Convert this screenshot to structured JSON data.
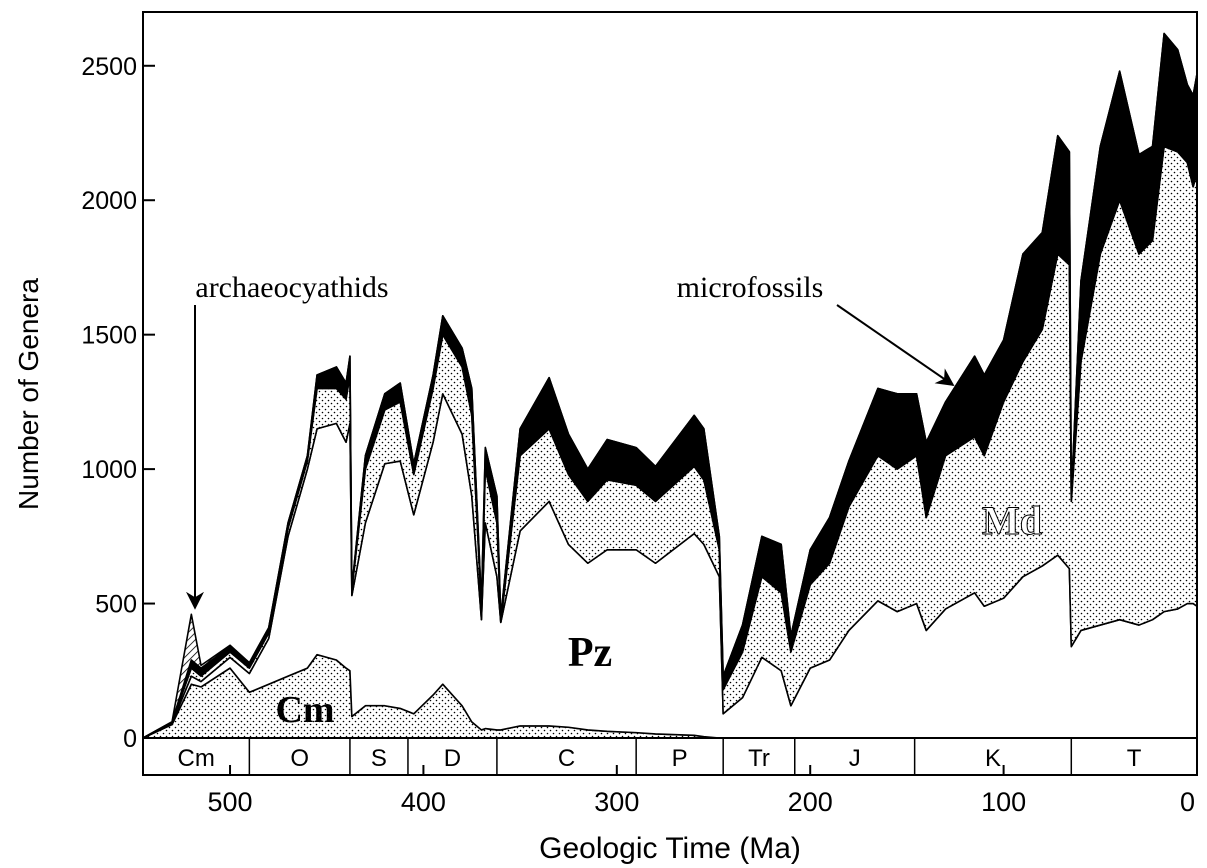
{
  "chart_data": {
    "type": "stacked_area",
    "xlabel": "Geologic Time (Ma)",
    "ylabel": "Number of Genera",
    "xlim": [
      545,
      0
    ],
    "ylim": [
      0,
      2700
    ],
    "xticks": [
      500,
      400,
      300,
      200,
      100,
      0
    ],
    "yticks": [
      0,
      500,
      1000,
      1500,
      2000,
      2500
    ],
    "x": [
      545,
      530,
      520,
      515,
      500,
      490,
      480,
      470,
      460,
      455,
      445,
      440,
      438,
      437,
      430,
      420,
      412,
      405,
      395,
      390,
      380,
      375,
      370,
      368,
      362,
      360,
      350,
      335,
      325,
      315,
      305,
      290,
      280,
      260,
      255,
      247,
      245,
      235,
      225,
      215,
      210,
      200,
      190,
      180,
      165,
      155,
      145,
      140,
      130,
      115,
      110,
      100,
      90,
      80,
      72,
      66,
      65,
      60,
      50,
      40,
      30,
      23,
      17,
      10,
      5,
      2,
      0
    ],
    "series": [
      {
        "name": "Cm",
        "color": "#000000",
        "pattern": "stipple",
        "values": [
          0,
          50,
          200,
          190,
          260,
          170,
          200,
          230,
          260,
          310,
          290,
          260,
          250,
          80,
          120,
          120,
          110,
          90,
          160,
          200,
          120,
          60,
          30,
          35,
          30,
          30,
          45,
          45,
          40,
          30,
          25,
          20,
          15,
          10,
          5,
          0,
          0,
          0,
          0,
          0,
          0,
          0,
          0,
          0,
          0,
          0,
          0,
          0,
          0,
          0,
          0,
          0,
          0,
          0,
          0,
          0,
          0,
          0,
          0,
          0,
          0,
          0,
          0,
          0,
          0,
          0,
          0
        ]
      },
      {
        "name": "Pz",
        "color": "#ffffff",
        "pattern": "solid",
        "values": [
          0,
          5,
          30,
          20,
          40,
          70,
          170,
          520,
          740,
          840,
          880,
          840,
          920,
          450,
          680,
          900,
          920,
          740,
          940,
          1080,
          1010,
          840,
          410,
          765,
          570,
          400,
          725,
          835,
          680,
          620,
          675,
          680,
          635,
          750,
          715,
          600,
          90,
          150,
          300,
          250,
          120,
          260,
          290,
          400,
          510,
          470,
          500,
          400,
          480,
          540,
          490,
          520,
          600,
          640,
          680,
          630,
          340,
          400,
          420,
          440,
          420,
          440,
          470,
          480,
          500,
          500,
          490
        ]
      },
      {
        "name": "Md",
        "color": "#000000",
        "pattern": "stipple",
        "values": [
          0,
          3,
          30,
          20,
          20,
          20,
          20,
          30,
          30,
          150,
          130,
          160,
          180,
          20,
          200,
          200,
          220,
          150,
          200,
          220,
          250,
          300,
          40,
          200,
          200,
          0,
          280,
          270,
          260,
          230,
          260,
          240,
          230,
          250,
          240,
          100,
          90,
          170,
          300,
          290,
          200,
          310,
          360,
          460,
          540,
          530,
          550,
          420,
          570,
          580,
          560,
          730,
          800,
          880,
          1120,
          1130,
          540,
          1000,
          1380,
          1560,
          1380,
          1410,
          1730,
          1700,
          1640,
          1550,
          1610
        ]
      },
      {
        "name": "microfossils",
        "color": "#000000",
        "pattern": "solid",
        "values": [
          0,
          2,
          30,
          30,
          20,
          20,
          20,
          20,
          20,
          50,
          80,
          60,
          70,
          10,
          50,
          60,
          70,
          40,
          50,
          70,
          70,
          100,
          20,
          80,
          100,
          20,
          100,
          190,
          150,
          120,
          150,
          140,
          130,
          190,
          190,
          50,
          50,
          100,
          150,
          180,
          60,
          130,
          170,
          170,
          250,
          280,
          230,
          280,
          200,
          300,
          300,
          230,
          400,
          360,
          440,
          420,
          20,
          300,
          400,
          480,
          370,
          350,
          420,
          380,
          290,
          340,
          370
        ]
      },
      {
        "name": "archaeocyathids",
        "color": "#000000",
        "pattern": "hatch",
        "values": [
          0,
          0,
          170,
          10,
          5,
          0,
          0,
          0,
          0,
          0,
          0,
          0,
          0,
          0,
          0,
          0,
          0,
          0,
          0,
          0,
          0,
          0,
          0,
          0,
          0,
          0,
          0,
          0,
          0,
          0,
          0,
          0,
          0,
          0,
          0,
          0,
          0,
          0,
          0,
          0,
          0,
          0,
          0,
          0,
          0,
          0,
          0,
          0,
          0,
          0,
          0,
          0,
          0,
          0,
          0,
          0,
          0,
          0,
          0,
          0,
          0,
          0,
          0,
          0,
          0,
          0,
          0
        ]
      }
    ],
    "periods": [
      {
        "label": "Cm",
        "start": 545,
        "end": 490
      },
      {
        "label": "O",
        "start": 490,
        "end": 438
      },
      {
        "label": "S",
        "start": 438,
        "end": 408
      },
      {
        "label": "D",
        "start": 408,
        "end": 362
      },
      {
        "label": "C",
        "start": 362,
        "end": 290
      },
      {
        "label": "P",
        "start": 290,
        "end": 245
      },
      {
        "label": "Tr",
        "start": 245,
        "end": 208
      },
      {
        "label": "J",
        "start": 208,
        "end": 146
      },
      {
        "label": "K",
        "start": 146,
        "end": 65
      },
      {
        "label": "T",
        "start": 65,
        "end": 0
      }
    ]
  }
}
